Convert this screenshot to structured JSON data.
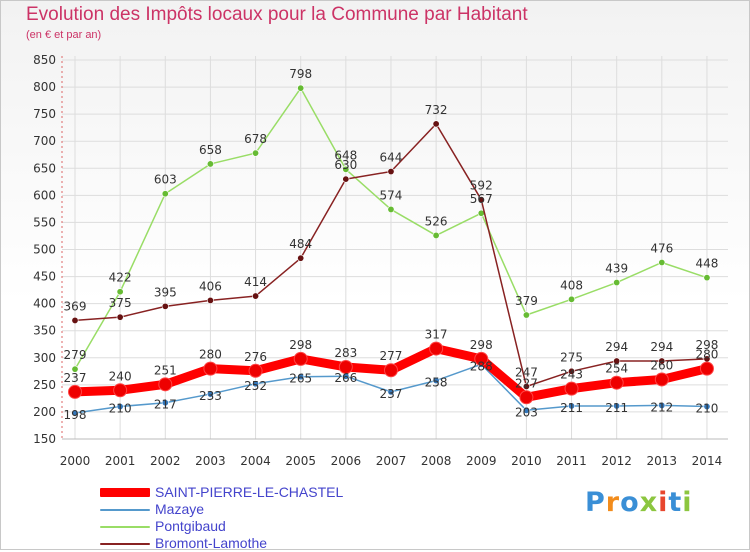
{
  "header": {
    "title": "Evolution des Impôts locaux pour la Commune par Habitant",
    "subtitle": "(en € et par an)"
  },
  "colors": {
    "title": "#cc3366",
    "legend_text": "#4444cc",
    "grid": "#dddddd",
    "axis_text": "#333333",
    "value_text": "#333333"
  },
  "logo": {
    "text": "Proxiti",
    "colors": [
      "#3a8fd6",
      "#f28c1c",
      "#3a8fd6",
      "#8cc63f",
      "#e8462e",
      "#3a8fd6",
      "#8cc63f"
    ]
  },
  "chart_data": {
    "type": "line",
    "title": "Evolution des Impôts locaux pour la Commune par Habitant",
    "subtitle": "(en € et par an)",
    "xlabel": "",
    "ylabel": "",
    "categories": [
      "2000",
      "2001",
      "2002",
      "2003",
      "2004",
      "2005",
      "2006",
      "2007",
      "2008",
      "2009",
      "2010",
      "2011",
      "2012",
      "2013",
      "2014"
    ],
    "ylim": [
      150,
      850
    ],
    "yticks": [
      150,
      200,
      250,
      300,
      350,
      400,
      450,
      500,
      550,
      600,
      650,
      700,
      750,
      800,
      850
    ],
    "grid": true,
    "legend_position": "bottom-left",
    "series": [
      {
        "name": "SAINT-PIERRE-LE-CHASTEL",
        "color": "#ff0000",
        "marker_color": "#ee0000",
        "values": [
          237,
          240,
          251,
          280,
          276,
          298,
          283,
          277,
          317,
          298,
          227,
          243,
          254,
          260,
          280
        ],
        "labels": [
          "237",
          "240",
          "251",
          "280",
          "276",
          "298",
          "283",
          "277",
          "317",
          "298",
          "227",
          "243",
          "254",
          "260",
          "280"
        ]
      },
      {
        "name": "Mazaye",
        "color": "#5599cc",
        "marker_color": "#3377bb",
        "values": [
          198,
          210,
          217,
          233,
          252,
          265,
          266,
          237,
          258,
          288,
          203,
          211,
          211,
          212,
          210
        ],
        "labels": [
          "198",
          "210",
          "217",
          "233",
          "252",
          "265",
          "266",
          "237",
          "258",
          "288",
          "203",
          "211",
          "211",
          "212",
          "210"
        ]
      },
      {
        "name": "Pontgibaud",
        "color": "#99dd66",
        "marker_color": "#66bb33",
        "values": [
          279,
          422,
          603,
          658,
          678,
          798,
          648,
          574,
          526,
          567,
          379,
          408,
          439,
          476,
          448
        ],
        "labels": [
          "279",
          "422",
          "603",
          "658",
          "678",
          "798",
          "648",
          "574",
          "526",
          "567",
          "379",
          "408",
          "439",
          "476",
          "448"
        ]
      },
      {
        "name": "Bromont-Lamothe",
        "color": "#882222",
        "marker_color": "#661111",
        "values": [
          369,
          375,
          395,
          406,
          414,
          484,
          630,
          644,
          732,
          592,
          247,
          275,
          294,
          294,
          298
        ],
        "labels": [
          "369",
          "375",
          "395",
          "406",
          "414",
          "484",
          "630",
          "644",
          "732",
          "592",
          "247",
          "275",
          "294",
          "294",
          "298"
        ]
      }
    ]
  }
}
